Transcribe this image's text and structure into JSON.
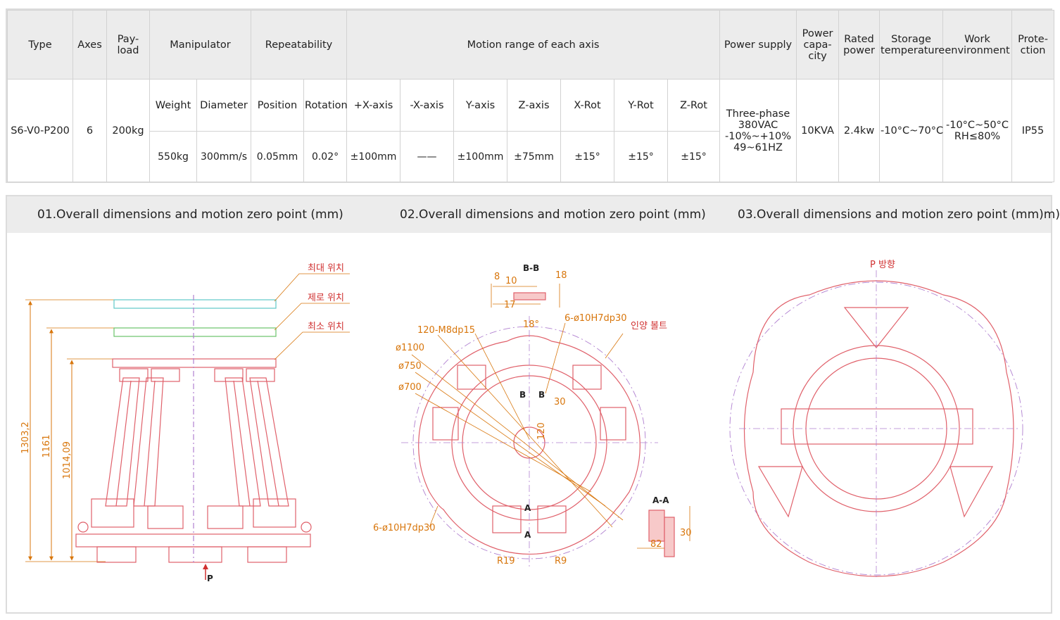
{
  "spec": {
    "headers": {
      "type": "Type",
      "axes": "Axes",
      "payload": "Pay-\nload",
      "manipulator": "Manipulator",
      "repeatability": "Repeatability",
      "motion_range": "Motion range of each axis",
      "power_supply": "Power supply",
      "power_capacity": "Power\ncapa-\ncity",
      "rated_power": "Rated\npower",
      "storage_temperature": "Storage\ntemperature",
      "work_environment": "Work\nenvironment",
      "protection": "Prote-\nction"
    },
    "subheaders": {
      "weight": "Weight",
      "diameter": "Diameter",
      "position": "Position",
      "rotation": "Rotation",
      "x_plus": "+X-axis",
      "x_minus": "-X-axis",
      "y_axis": "Y-axis",
      "z_axis": "Z-axis",
      "x_rot": "X-Rot",
      "y_rot": "Y-Rot",
      "z_rot": "Z-Rot"
    },
    "values": {
      "type": "S6-V0-P200",
      "axes": "6",
      "payload": "200kg",
      "weight": "550kg",
      "diameter": "300mm/s",
      "position": "0.05mm",
      "rotation": "0.02°",
      "x_plus": "±100mm",
      "x_minus": "——",
      "y_axis": "±100mm",
      "z_axis": "±75mm",
      "x_rot": "±15°",
      "y_rot": "±15°",
      "z_rot": "±15°",
      "power_supply": "Three-phase\n380VAC\n-10%~+10%\n49~61HZ",
      "power_capacity": "10KVA",
      "rated_power": "2.4kw",
      "storage_temperature": "-10°C~70°C",
      "work_environment": "-10°C~50°C\nRH≤80%",
      "protection": "IP55"
    }
  },
  "drawings": {
    "panel1": {
      "title": "01.Overall dimensions and motion zero point (mm)",
      "labels": {
        "max_position": "최대 위치",
        "zero_position": "제로 위치",
        "min_position": "최소 위치",
        "p_marker": "P"
      },
      "dimensions": {
        "total_height": "1303,2",
        "zero_height": "1161",
        "min_height": "1014,09"
      }
    },
    "panel2": {
      "title": "02.Overall dimensions and motion zero point (mm)",
      "labels": {
        "section_bb": "B-B",
        "section_aa": "A-A",
        "holes_m8": "120-M8dp15",
        "holes_top": "6-ø10H7dp30",
        "holes_left": "6-ø10H7dp30",
        "lift_bolt": "인양 볼트",
        "d1100": "ø1100",
        "d750": "ø750",
        "d700": "ø700",
        "angle18": "18°",
        "bb_8": "8",
        "bb_10": "10",
        "bb_17": "17",
        "bb_18": "18",
        "dim30": "30",
        "dim120": "120",
        "r19": "R19",
        "r9": "R9",
        "aa_82": "82",
        "aa_30": "30",
        "mark_a": "A",
        "mark_b": "B"
      }
    },
    "panel3": {
      "title": "03.Overall dimensions and motion zero point (mm)m)",
      "labels": {
        "p_direction": "P 방향"
      }
    }
  }
}
